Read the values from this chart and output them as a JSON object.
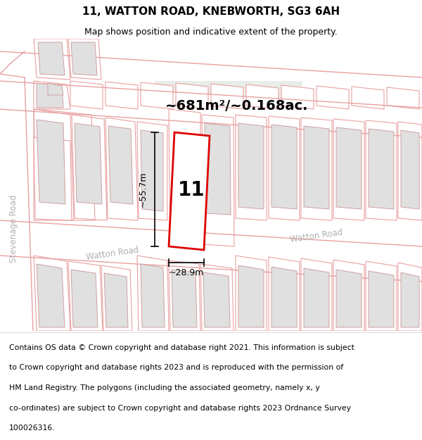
{
  "title": "11, WATTON ROAD, KNEBWORTH, SG3 6AH",
  "subtitle": "Map shows position and indicative extent of the property.",
  "area_label": "~681m²/~0.168ac.",
  "dim_width": "~28.9m",
  "dim_height": "~55.7m",
  "plot_number": "11",
  "road1_label": "Watton Road",
  "road2_label": "Watton Road",
  "road3_label": "Stevenage Road",
  "footer_lines": [
    "Contains OS data © Crown copyright and database right 2021. This information is subject",
    "to Crown copyright and database rights 2023 and is reproduced with the permission of",
    "HM Land Registry. The polygons (including the associated geometry, namely x, y",
    "co-ordinates) are subject to Crown copyright and database rights 2023 Ordnance Survey",
    "100026316."
  ],
  "map_bg": "#ffffff",
  "plot_edge_color": "#dd0000",
  "road_line_color": "#e8a0a0",
  "bld_fill": "#e0e0e0",
  "bld_edge": "#d0a0a0",
  "green_fill": "#e8ede8",
  "title_fontsize": 11,
  "subtitle_fontsize": 9,
  "footer_fontsize": 7.8,
  "label_fontsize": 14,
  "dim_fontsize": 9,
  "road_label_fontsize": 8.5,
  "plot_num_fontsize": 20
}
